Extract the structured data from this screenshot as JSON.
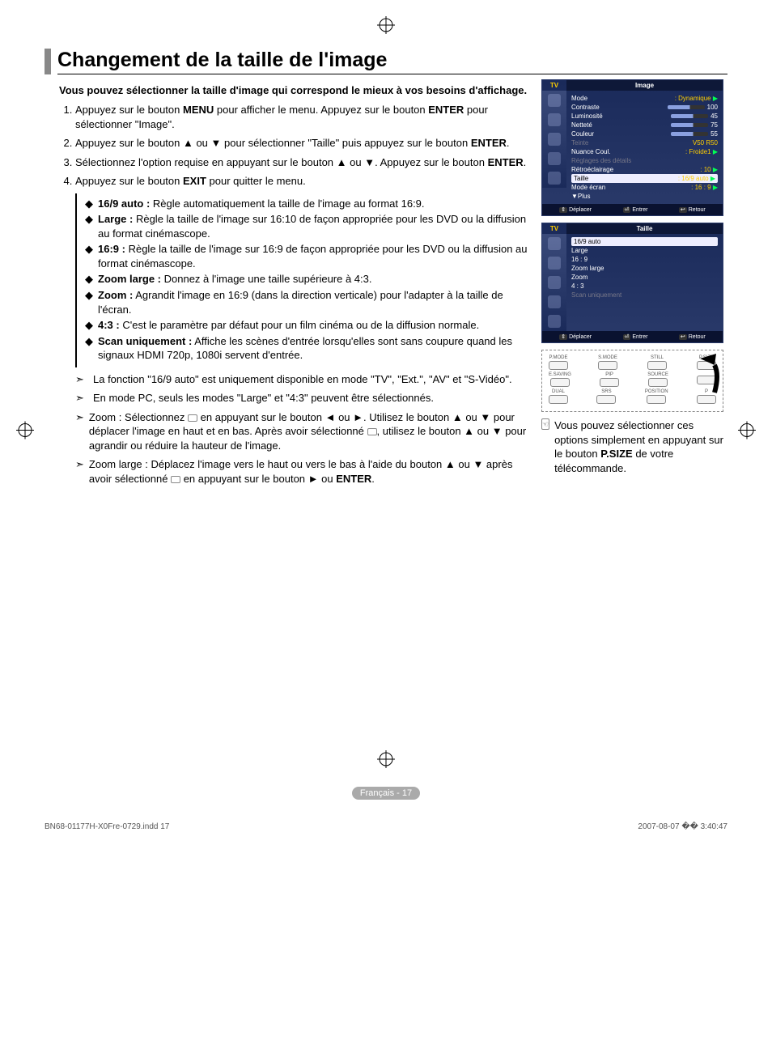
{
  "title": "Changement de la taille de l'image",
  "intro": "Vous pouvez sélectionner la taille d'image qui correspond le mieux à vos besoins d'affichage.",
  "steps": [
    {
      "parts": [
        "Appuyez sur le bouton ",
        {
          "b": "MENU"
        },
        " pour afficher le menu. Appuyez sur le bouton ",
        {
          "b": "ENTER"
        },
        " pour sélectionner \"Image\"."
      ]
    },
    {
      "parts": [
        "Appuyez sur le bouton ▲ ou ▼ pour sélectionner \"Taille\" puis appuyez sur le bouton ",
        {
          "b": "ENTER"
        },
        "."
      ]
    },
    {
      "parts": [
        "Sélectionnez l'option requise en appuyant sur le bouton ▲ ou ▼. Appuyez sur le bouton ",
        {
          "b": "ENTER"
        },
        "."
      ]
    },
    {
      "parts": [
        "Appuyez sur le bouton ",
        {
          "b": "EXIT"
        },
        " pour quitter le menu."
      ]
    }
  ],
  "options": [
    {
      "label": "16/9 auto :",
      "desc": "Règle automatiquement la taille de l'image au format 16:9."
    },
    {
      "label": "Large :",
      "desc": "Règle la taille de l'image sur 16:10 de façon appropriée pour les DVD ou la diffusion au format cinémascope."
    },
    {
      "label": "16:9 :",
      "desc": "Règle la taille de l'image sur 16:9 de façon appropriée pour les DVD ou la diffusion au format cinémascope."
    },
    {
      "label": "Zoom large :",
      "desc": "Donnez à l'image une taille supérieure à 4:3."
    },
    {
      "label": "Zoom :",
      "desc": "Agrandit l'image en 16:9 (dans la direction verticale) pour l'adapter à la taille de l'écran."
    },
    {
      "label": "4:3 :",
      "desc": "C'est le paramètre par défaut pour un film cinéma ou de la diffusion normale."
    },
    {
      "label": "Scan uniquement :",
      "desc": "Affiche les scènes d'entrée lorsqu'elles sont sans coupure quand les signaux HDMI 720p, 1080i servent d'entrée."
    }
  ],
  "notes": [
    "La fonction \"16/9 auto\" est uniquement disponible en mode \"TV\", \"Ext.\", \"AV\" et \"S-Vidéo\".",
    "En mode PC, seuls les modes \"Large\" et \"4:3\" peuvent être sélectionnés.",
    "Zoom : Sélectionnez ▭ en appuyant sur le bouton ◄ ou ►. Utilisez le bouton ▲ ou ▼ pour déplacer l'image en haut et en bas. Après avoir sélectionné ▭, utilisez le bouton ▲ ou ▼ pour agrandir ou réduire la hauteur de l'image.",
    "Zoom large : Déplacez l'image vers le haut ou vers le bas à l'aide du bouton ▲ ou ▼ après avoir sélectionné ▭ en appuyant sur le bouton ► ou ENTER."
  ],
  "tip": [
    "Vous pouvez sélectionner ces options simplement en appuyant sur le bouton ",
    {
      "b": "P.SIZE"
    },
    " de votre télécommande."
  ],
  "osd1": {
    "tv": "TV",
    "header": "Image",
    "items": [
      {
        "l": "Mode",
        "v": ": Dynamique",
        "arrow": true
      },
      {
        "l": "Contraste",
        "bar": true,
        "n": "100"
      },
      {
        "l": "Luminosité",
        "bar": true,
        "n": "45"
      },
      {
        "l": "Netteté",
        "bar": true,
        "n": "75"
      },
      {
        "l": "Couleur",
        "bar": true,
        "n": "55"
      },
      {
        "l": "Teinte",
        "dim": true,
        "v": "V50          R50"
      },
      {
        "l": "Nuance Coul.",
        "v": ": Froide1",
        "arrow": true
      },
      {
        "l": "Réglages des détails",
        "dim": true
      },
      {
        "l": "Rétroéclairage",
        "v": ": 10",
        "arrow": true
      },
      {
        "l": "Taille",
        "v": ": 16/9 auto",
        "hl": true,
        "arrow": true
      },
      {
        "l": "Mode écran",
        "v": ": 16 : 9",
        "arrow": true
      },
      {
        "l": "▼Plus"
      }
    ],
    "footer": [
      {
        "k": "⇕",
        "t": "Déplacer"
      },
      {
        "k": "⏎",
        "t": "Entrer"
      },
      {
        "k": "↩",
        "t": "Retour"
      }
    ]
  },
  "osd2": {
    "tv": "TV",
    "header": "Taille",
    "items": [
      {
        "l": "16/9 auto",
        "hl": true
      },
      {
        "l": "Large"
      },
      {
        "l": "16 : 9"
      },
      {
        "l": "Zoom large"
      },
      {
        "l": "Zoom"
      },
      {
        "l": "4 : 3"
      },
      {
        "l": "Scan uniquement",
        "dim": true
      }
    ],
    "footer": [
      {
        "k": "⇕",
        "t": "Déplacer"
      },
      {
        "k": "⏎",
        "t": "Entrer"
      },
      {
        "k": "↩",
        "t": "Retour"
      }
    ]
  },
  "remote": {
    "row1": [
      "P.MODE",
      "S.MODE",
      "STILL",
      "P.SIZE"
    ],
    "row2": [
      "E.SAVING",
      "PIP",
      "SOURCE",
      ""
    ],
    "row3": [
      "DUAL",
      "SRS",
      "POSITION",
      "P"
    ]
  },
  "pageLabel": "Français - 17",
  "footerLeft": "BN68-01177H-X0Fre-0729.indd   17",
  "footerRight": "2007-08-07   �� 3:40:47"
}
